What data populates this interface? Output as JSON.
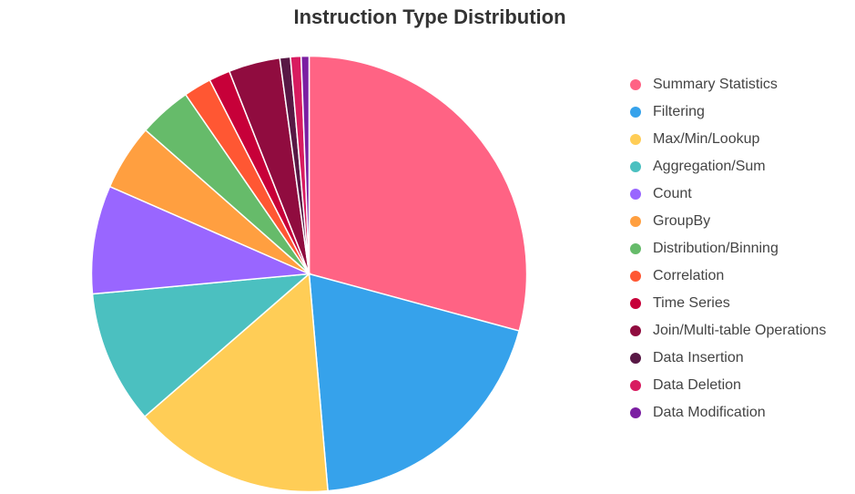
{
  "chart_data": {
    "type": "pie",
    "title": "Instruction Type Distribution",
    "legend_position": "right",
    "categories": [
      "Summary Statistics",
      "Filtering",
      "Max/Min/Lookup",
      "Aggregation/Sum",
      "Count",
      "GroupBy",
      "Distribution/Binning",
      "Correlation",
      "Time Series",
      "Join/Multi-table Operations",
      "Data Insertion",
      "Data Deletion",
      "Data Modification"
    ],
    "values": [
      29.8,
      19.8,
      15.3,
      10.1,
      8.2,
      5.0,
      4.0,
      2.1,
      1.6,
      3.9,
      0.8,
      0.8,
      0.6
    ],
    "colors": [
      "#ff6384",
      "#36a2eb",
      "#ffcd56",
      "#4bc0c0",
      "#9966ff",
      "#ff9f40",
      "#66bb6a",
      "#ff5733",
      "#c70039",
      "#900c3f",
      "#581845",
      "#d81b60",
      "#7b1fa2"
    ]
  }
}
